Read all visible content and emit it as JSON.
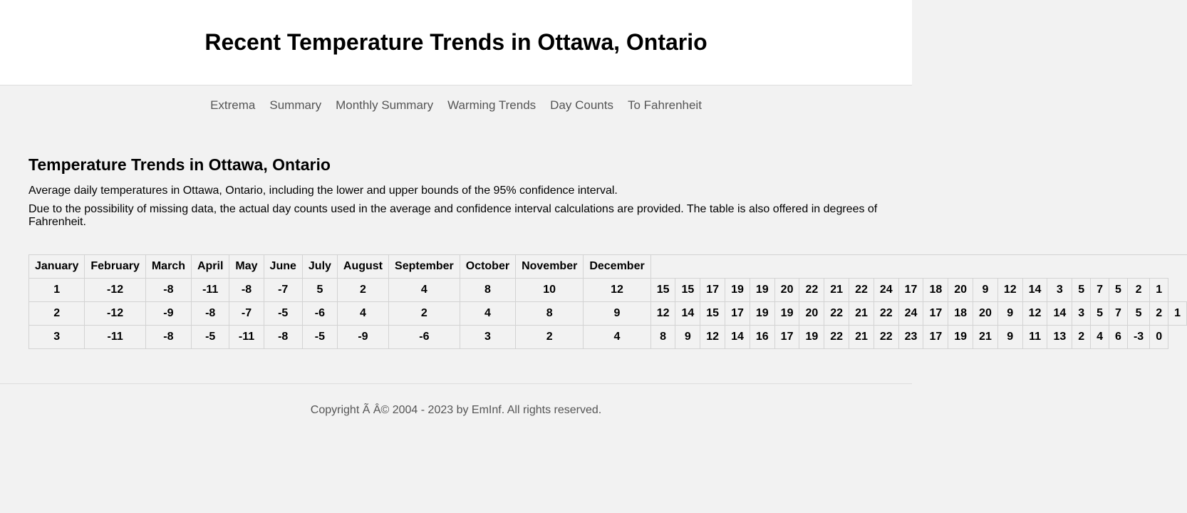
{
  "header": {
    "title": "Recent Temperature Trends in Ottawa, Ontario"
  },
  "nav": {
    "items": [
      {
        "label": "Extrema"
      },
      {
        "label": "Summary"
      },
      {
        "label": "Monthly Summary"
      },
      {
        "label": "Warming Trends"
      },
      {
        "label": "Day Counts"
      },
      {
        "label": "To Fahrenheit"
      }
    ]
  },
  "main": {
    "title": "Temperature Trends in Ottawa, Ontario",
    "paragraphs": [
      "Average daily temperatures in Ottawa, Ontario, including the lower and upper bounds of the 95% confidence interval.",
      "Due to the possibility of missing data, the actual day counts used in the average and confidence interval calculations are provided. The table is also offered in degrees of Fahrenheit."
    ]
  },
  "table": {
    "headers": [
      "January",
      "February",
      "March",
      "April",
      "May",
      "June",
      "July",
      "August",
      "September",
      "October",
      "November",
      "December"
    ],
    "rows": [
      [
        "1",
        "-12",
        "-8",
        "-11",
        "-8",
        "-7",
        "5",
        "2",
        "4",
        "8",
        "10",
        "12",
        "15",
        "15",
        "17",
        "19",
        "19",
        "20",
        "22",
        "21",
        "22",
        "24",
        "17",
        "18",
        "20",
        "9",
        "12",
        "14",
        "3",
        "5",
        "7",
        "5",
        "2",
        "1"
      ],
      [
        "2",
        "-12",
        "-9",
        "-8",
        "-7",
        "-5",
        "-6",
        "4",
        "2",
        "4",
        "8",
        "9",
        "12",
        "14",
        "15",
        "17",
        "19",
        "19",
        "20",
        "22",
        "21",
        "22",
        "24",
        "17",
        "18",
        "20",
        "9",
        "12",
        "14",
        "3",
        "5",
        "7",
        "5",
        "2",
        "1"
      ],
      [
        "3",
        "-11",
        "-8",
        "-5",
        "-11",
        "-8",
        "-5",
        "-9",
        "-6",
        "3",
        "2",
        "4",
        "8",
        "9",
        "12",
        "14",
        "16",
        "17",
        "19",
        "22",
        "21",
        "22",
        "23",
        "17",
        "19",
        "21",
        "9",
        "11",
        "13",
        "2",
        "4",
        "6",
        "-3",
        "0"
      ]
    ]
  },
  "footer": {
    "text": "Copyright Ã    Â© 2004 - 2023 by EmInf. All rights reserved."
  }
}
